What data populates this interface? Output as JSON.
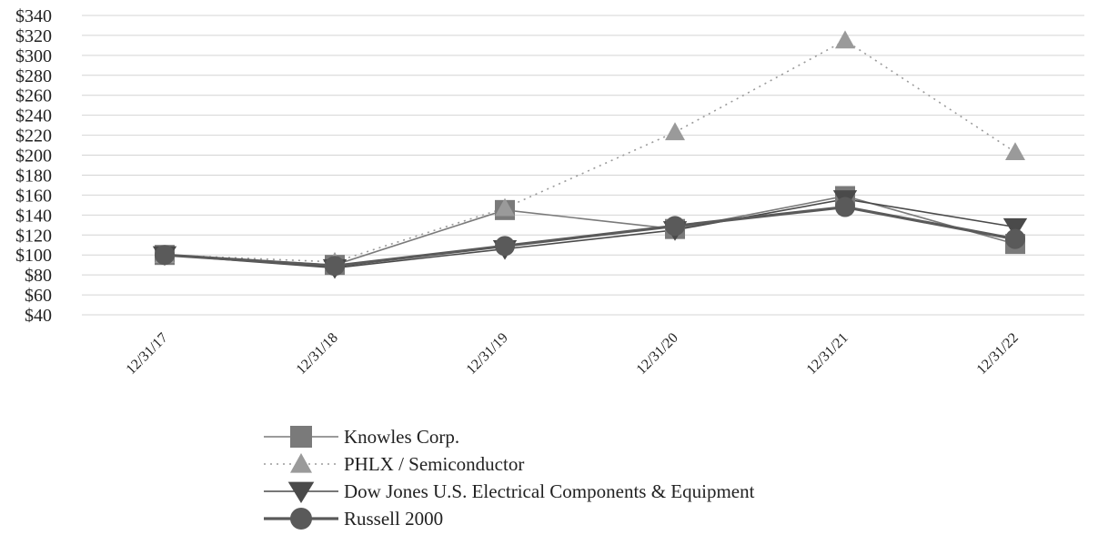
{
  "chart_data": {
    "type": "line",
    "title": "",
    "xlabel": "",
    "ylabel": "",
    "categories": [
      "12/31/17",
      "12/31/18",
      "12/31/19",
      "12/31/20",
      "12/31/21",
      "12/31/22"
    ],
    "y_ticks": [
      "$340",
      "$320",
      "$300",
      "$280",
      "$260",
      "$240",
      "$220",
      "$200",
      "$180",
      "$160",
      "$140",
      "$120",
      "$100",
      "$80",
      "$60",
      "$40"
    ],
    "ylim": [
      40,
      340
    ],
    "grid": "horizontal",
    "legend_position": "bottom",
    "series": [
      {
        "name": "Knowles Corp.",
        "values": [
          100,
          90,
          145,
          126,
          159,
          111
        ],
        "color": "#7a7a7a",
        "marker": "square",
        "line": "solid"
      },
      {
        "name": "PHLX / Semiconductor",
        "values": [
          100,
          93,
          147,
          223,
          315,
          203
        ],
        "color": "#9a9a9a",
        "marker": "triangle-up",
        "line": "dotted"
      },
      {
        "name": "Dow Jones U.S. Electrical Components & Equipment",
        "values": [
          100,
          87,
          106,
          125,
          156,
          128
        ],
        "color": "#4a4a4a",
        "marker": "triangle-down",
        "line": "solid"
      },
      {
        "name": "Russell 2000",
        "values": [
          100,
          89,
          109,
          129,
          148,
          116
        ],
        "color": "#5a5a5a",
        "marker": "circle",
        "line": "solid-thick"
      }
    ]
  }
}
